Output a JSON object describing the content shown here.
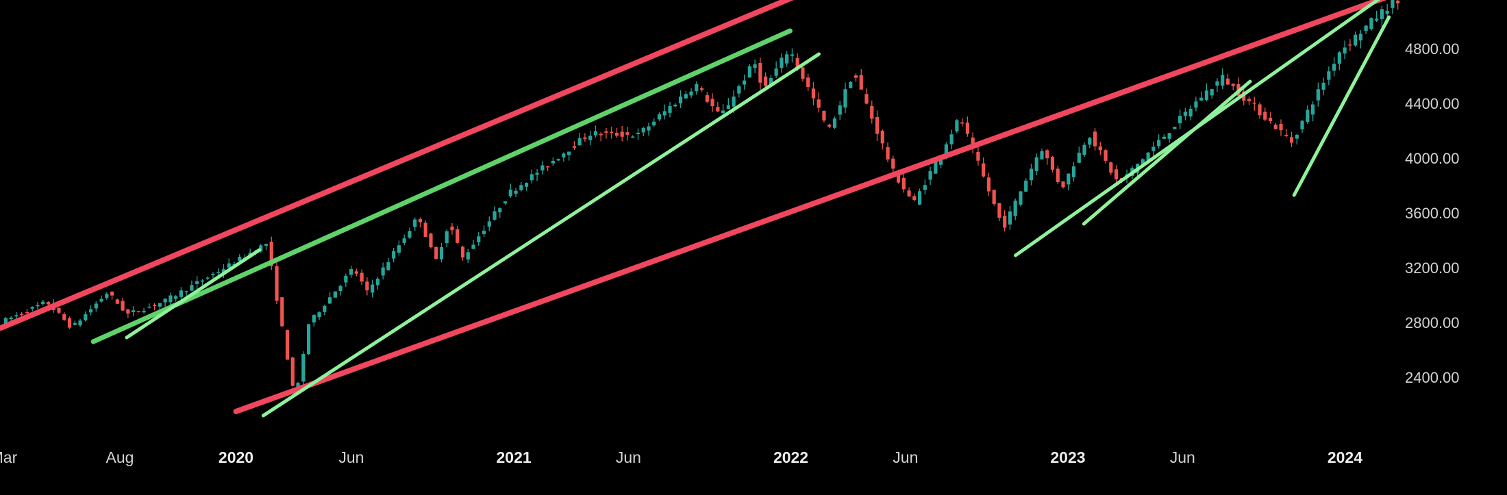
{
  "chart_data": {
    "type": "candlestick",
    "title": "",
    "xlabel": "",
    "ylabel": "",
    "x_range": [
      "2019-02-25",
      "2024-03-11"
    ],
    "y_range": [
      2050,
      5250
    ],
    "grid": false,
    "legend": "none",
    "colors": {
      "background": "#000000",
      "up": "#26a69a",
      "down": "#ef5350",
      "trend_red": "#f0475e",
      "trend_green": "#5fd36a",
      "trend_light_green": "#8ff29a",
      "label": "#d4d4d4"
    },
    "y_ticks": [
      "4800.00",
      "4400.00",
      "4000.00",
      "3600.00",
      "3200.00",
      "2800.00",
      "2400.00"
    ],
    "y_tick_values": [
      4800,
      4400,
      4000,
      3600,
      3200,
      2800,
      2400
    ],
    "x_ticks": [
      {
        "label": "Mar",
        "date": "2019-03-01",
        "major": false
      },
      {
        "label": "Aug",
        "date": "2019-08-01",
        "major": false
      },
      {
        "label": "2020",
        "date": "2020-01-01",
        "major": true
      },
      {
        "label": "Jun",
        "date": "2020-06-01",
        "major": false
      },
      {
        "label": "2021",
        "date": "2021-01-01",
        "major": true
      },
      {
        "label": "Jun",
        "date": "2021-06-01",
        "major": false
      },
      {
        "label": "2022",
        "date": "2022-01-01",
        "major": true
      },
      {
        "label": "Jun",
        "date": "2022-06-01",
        "major": false
      },
      {
        "label": "2023",
        "date": "2023-01-01",
        "major": true
      },
      {
        "label": "Jun",
        "date": "2023-06-01",
        "major": false
      },
      {
        "label": "2024",
        "date": "2024-01-01",
        "major": true
      }
    ],
    "price_path": [
      [
        "2019-03-01",
        2800
      ],
      [
        "2019-05-01",
        2950
      ],
      [
        "2019-06-03",
        2760
      ],
      [
        "2019-07-20",
        3020
      ],
      [
        "2019-08-15",
        2860
      ],
      [
        "2019-10-01",
        2950
      ],
      [
        "2019-12-31",
        3230
      ],
      [
        "2020-02-15",
        3380
      ],
      [
        "2020-03-23",
        2230
      ],
      [
        "2020-04-10",
        2790
      ],
      [
        "2020-06-08",
        3200
      ],
      [
        "2020-06-26",
        3020
      ],
      [
        "2020-09-02",
        3580
      ],
      [
        "2020-09-24",
        3240
      ],
      [
        "2020-10-12",
        3530
      ],
      [
        "2020-10-30",
        3270
      ],
      [
        "2020-12-31",
        3750
      ],
      [
        "2021-04-15",
        4180
      ],
      [
        "2021-06-18",
        4170
      ],
      [
        "2021-09-02",
        4540
      ],
      [
        "2021-10-04",
        4300
      ],
      [
        "2021-11-18",
        4700
      ],
      [
        "2021-12-01",
        4500
      ],
      [
        "2022-01-03",
        4800
      ],
      [
        "2022-02-24",
        4200
      ],
      [
        "2022-03-29",
        4630
      ],
      [
        "2022-05-20",
        3900
      ],
      [
        "2022-06-16",
        3670
      ],
      [
        "2022-08-16",
        4300
      ],
      [
        "2022-10-12",
        3490
      ],
      [
        "2022-12-01",
        4080
      ],
      [
        "2022-12-28",
        3780
      ],
      [
        "2023-02-02",
        4180
      ],
      [
        "2023-03-13",
        3810
      ],
      [
        "2023-06-30",
        4450
      ],
      [
        "2023-07-28",
        4590
      ],
      [
        "2023-10-27",
        4120
      ],
      [
        "2023-12-29",
        4780
      ],
      [
        "2024-03-08",
        5140
      ]
    ],
    "trendlines": [
      {
        "color": "red",
        "from": [
          "2019-02-25",
          2760
        ],
        "to": [
          "2022-01-28",
          5230
        ]
      },
      {
        "color": "red",
        "from": [
          "2020-01-01",
          2150
        ],
        "to": [
          "2024-03-08",
          5200
        ]
      },
      {
        "color": "green",
        "from": [
          "2019-06-27",
          2660
        ],
        "to": [
          "2021-12-31",
          4930
        ]
      },
      {
        "color": "lightgreen",
        "from": [
          "2019-08-10",
          2690
        ],
        "to": [
          "2020-02-01",
          3330
        ]
      },
      {
        "color": "lightgreen",
        "from": [
          "2020-02-06",
          2120
        ],
        "to": [
          "2022-02-07",
          4760
        ]
      },
      {
        "color": "lightgreen",
        "from": [
          "2022-10-24",
          3290
        ],
        "to": [
          "2024-03-03",
          5230
        ]
      },
      {
        "color": "lightgreen",
        "from": [
          "2023-01-22",
          3520
        ],
        "to": [
          "2023-08-29",
          4560
        ]
      },
      {
        "color": "lightgreen",
        "from": [
          "2023-10-26",
          3730
        ],
        "to": [
          "2024-02-28",
          5030
        ]
      }
    ]
  }
}
